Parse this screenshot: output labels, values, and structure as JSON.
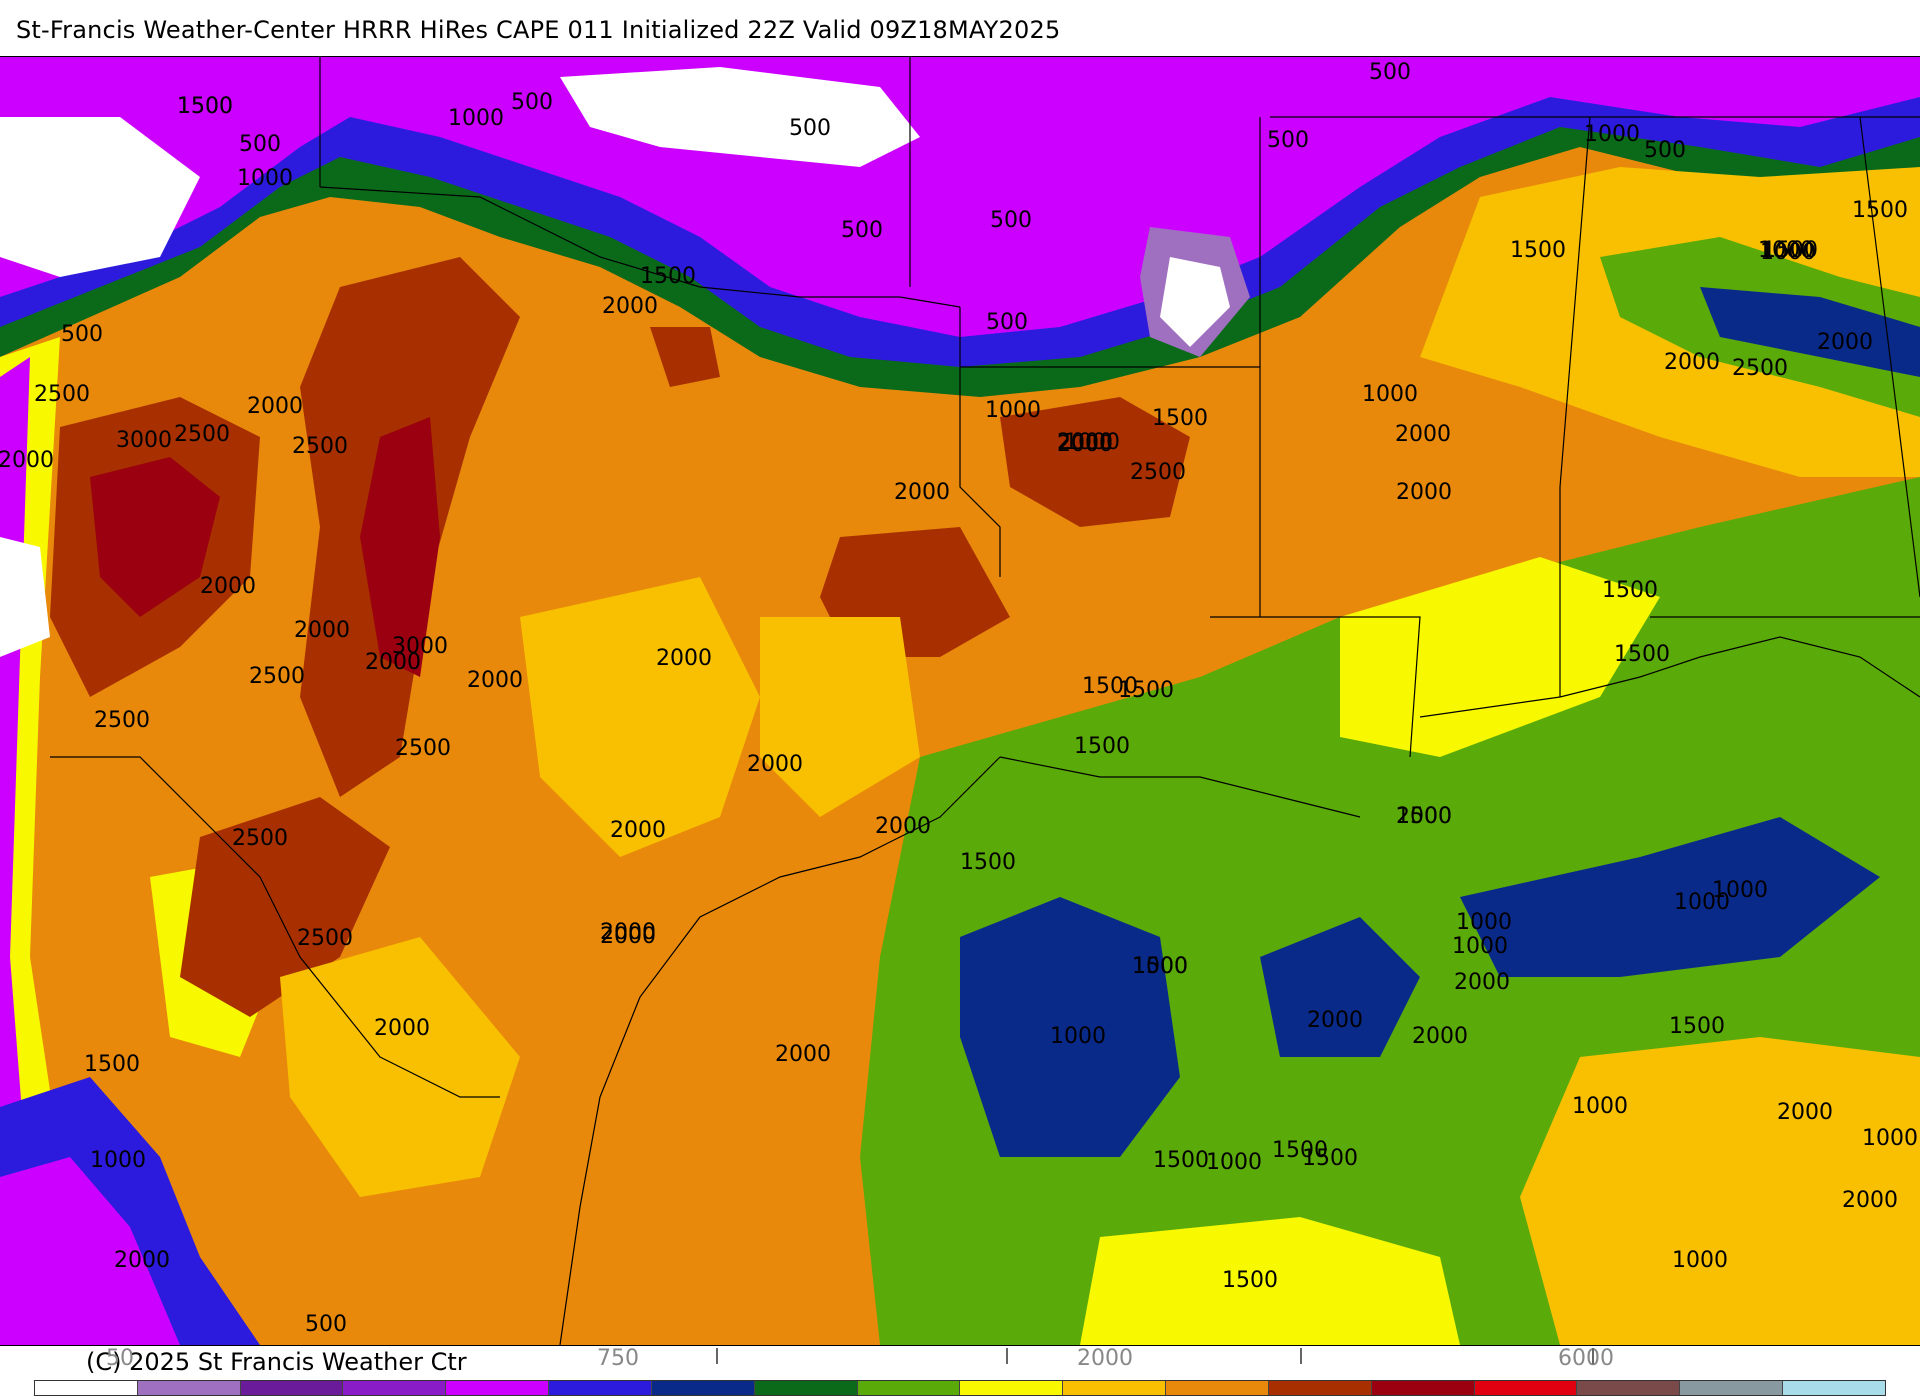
{
  "title": "St-Francis Weather-Center HRRR HiRes CAPE  011 Initialized  22Z Valid 09Z18MAY2025",
  "copyright": "(C) 2025 St Francis Weather Ctr",
  "colors": {
    "land_base": "#e8890c",
    "white": "#ffffff",
    "lavender": "#a070c0",
    "dark_purple": "#6a1b9a",
    "purple": "#8a1cc8",
    "magenta": "#cc00ff",
    "blue": "#2c1bdc",
    "navy": "#0a2a8a",
    "dark_green": "#0a6a1a",
    "green": "#5aaa0a",
    "yellow": "#f8f800",
    "gold": "#f8c000",
    "orange": "#e8890c",
    "rust": "#a83000",
    "dark_red": "#9a0010",
    "red": "#e00010",
    "brown_gray": "#7a4a4a",
    "gray": "#8899a0",
    "light_blue": "#a8dce8"
  },
  "legend": {
    "swatch_colors": [
      "#ffffff",
      "#a070c0",
      "#6a1b9a",
      "#8a1cc8",
      "#cc00ff",
      "#2c1bdc",
      "#0a2a8a",
      "#0a6a1a",
      "#5aaa0a",
      "#f8f800",
      "#f8c000",
      "#e8890c",
      "#a83000",
      "#9a0010",
      "#e00010",
      "#7a4a4a",
      "#8899a0",
      "#a8dce8"
    ],
    "ticks": [
      "50",
      "750",
      "2000",
      "6000"
    ]
  },
  "contour_labels": [
    {
      "text": "1500",
      "v": 1500
    },
    {
      "text": "1000",
      "v": 1000
    },
    {
      "text": "500",
      "v": 500
    },
    {
      "text": "1000",
      "v": 1000
    },
    {
      "text": "500",
      "v": 500
    },
    {
      "text": "500",
      "v": 500
    },
    {
      "text": "1000",
      "v": 1000
    },
    {
      "text": "500",
      "v": 500
    },
    {
      "text": "500",
      "v": 500
    },
    {
      "text": "500",
      "v": 500
    },
    {
      "text": "500",
      "v": 500
    },
    {
      "text": "1500",
      "v": 1500
    },
    {
      "text": "2000",
      "v": 2000
    },
    {
      "text": "500",
      "v": 500
    },
    {
      "text": "500",
      "v": 500
    },
    {
      "text": "1500",
      "v": 1500
    },
    {
      "text": "1000",
      "v": 1000
    },
    {
      "text": "1500",
      "v": 1500
    },
    {
      "text": "2000",
      "v": 2000
    },
    {
      "text": "2500",
      "v": 2500
    },
    {
      "text": "2000",
      "v": 2000
    },
    {
      "text": "2500",
      "v": 2500
    },
    {
      "text": "3000",
      "v": 3000
    },
    {
      "text": "2500",
      "v": 2500
    },
    {
      "text": "1000",
      "v": 1000
    },
    {
      "text": "2000",
      "v": 2000
    },
    {
      "text": "1500",
      "v": 1500
    },
    {
      "text": "2500",
      "v": 2500
    },
    {
      "text": "1000",
      "v": 1000
    },
    {
      "text": "2000",
      "v": 2000
    },
    {
      "text": "2000",
      "v": 2000
    },
    {
      "text": "1000",
      "v": 1000
    },
    {
      "text": "500",
      "v": 500
    },
    {
      "text": "1500",
      "v": 1500
    },
    {
      "text": "1000",
      "v": 1000
    },
    {
      "text": "2000",
      "v": 2000
    },
    {
      "text": "1500",
      "v": 1500
    },
    {
      "text": "2000",
      "v": 2000
    },
    {
      "text": "2500",
      "v": 2500
    },
    {
      "text": "2000",
      "v": 2000
    },
    {
      "text": "2000",
      "v": 2000
    },
    {
      "text": "2000",
      "v": 2000
    },
    {
      "text": "3000",
      "v": 3000
    },
    {
      "text": "2000",
      "v": 2000
    },
    {
      "text": "2500",
      "v": 2500
    },
    {
      "text": "2000",
      "v": 2000
    },
    {
      "text": "2500",
      "v": 2500
    },
    {
      "text": "2000",
      "v": 2000
    },
    {
      "text": "2000",
      "v": 2000
    },
    {
      "text": "1500",
      "v": 1500
    },
    {
      "text": "1500",
      "v": 1500
    },
    {
      "text": "1500",
      "v": 1500
    },
    {
      "text": "2500",
      "v": 2500
    },
    {
      "text": "1500",
      "v": 1500
    },
    {
      "text": "2000",
      "v": 2000
    },
    {
      "text": "2000",
      "v": 2000
    },
    {
      "text": "2500",
      "v": 2500
    },
    {
      "text": "2000",
      "v": 2000
    },
    {
      "text": "2000",
      "v": 2000
    },
    {
      "text": "2000",
      "v": 2000
    },
    {
      "text": "1500",
      "v": 1500
    },
    {
      "text": "2000",
      "v": 2000
    },
    {
      "text": "2500",
      "v": 2500
    },
    {
      "text": "2000",
      "v": 2000
    },
    {
      "text": "2000",
      "v": 2000
    },
    {
      "text": "1500",
      "v": 1500
    },
    {
      "text": "1000",
      "v": 1000
    },
    {
      "text": "1500",
      "v": 1500
    },
    {
      "text": "1000",
      "v": 1000
    },
    {
      "text": "1000",
      "v": 1000
    },
    {
      "text": "2000",
      "v": 2000
    },
    {
      "text": "1500",
      "v": 1500
    },
    {
      "text": "1000",
      "v": 1000
    },
    {
      "text": "1500",
      "v": 1500
    },
    {
      "text": "1000",
      "v": 1000
    },
    {
      "text": "1000",
      "v": 1000
    },
    {
      "text": "1000",
      "v": 1000
    },
    {
      "text": "1500",
      "v": 1500
    },
    {
      "text": "1000",
      "v": 1000
    },
    {
      "text": "2000",
      "v": 2000
    },
    {
      "text": "1500",
      "v": 1500
    },
    {
      "text": "2000",
      "v": 2000
    },
    {
      "text": "2000",
      "v": 2000
    },
    {
      "text": "1000",
      "v": 1000
    },
    {
      "text": "2000",
      "v": 2000
    },
    {
      "text": "1500",
      "v": 1500
    },
    {
      "text": "1000",
      "v": 1000
    },
    {
      "text": "2000",
      "v": 2000
    },
    {
      "text": "500",
      "v": 500
    },
    {
      "text": "1000",
      "v": 1000
    },
    {
      "text": "1500",
      "v": 1500
    },
    {
      "text": "1500",
      "v": 1500
    }
  ]
}
